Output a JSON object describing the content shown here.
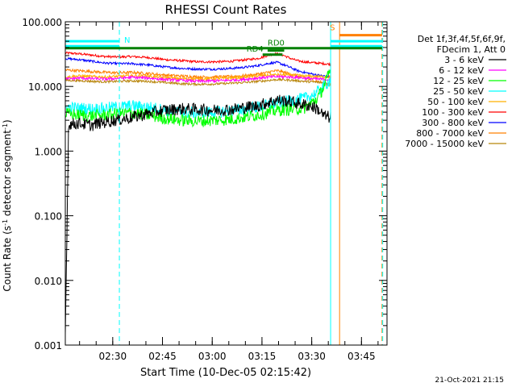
{
  "chart_data": {
    "type": "line",
    "title": "RHESSI Count Rates",
    "xlabel": "Start Time (10-Dec-05 02:15:42)",
    "ylabel_main": "Count Rate (s",
    "ylabel_sup": "-1",
    "ylabel_rest": " detector segment",
    "ylabel_sup2": "-1",
    "ylabel_close": ")",
    "y_scale": "log",
    "ylim": [
      0.001,
      100
    ],
    "y_ticks": [
      {
        "value": 0.001,
        "label": "0.001"
      },
      {
        "value": 0.01,
        "label": "0.010"
      },
      {
        "value": 0.1,
        "label": "0.100"
      },
      {
        "value": 1,
        "label": "1.000"
      },
      {
        "value": 10,
        "label": "10.000"
      },
      {
        "value": 100,
        "label": "100.000"
      }
    ],
    "x_unit": "minutes after 02:15:42",
    "xlim": [
      0,
      97
    ],
    "x_ticks": [
      {
        "value": 14.3,
        "label": "02:30"
      },
      {
        "value": 29.3,
        "label": "02:45"
      },
      {
        "value": 44.3,
        "label": "03:00"
      },
      {
        "value": 59.3,
        "label": "03:15"
      },
      {
        "value": 74.3,
        "label": "03:30"
      },
      {
        "value": 89.3,
        "label": "03:45"
      }
    ],
    "grid": false,
    "legend_header": [
      "Det 1f,3f,4f,5f,6f,9f,",
      "FDecim 1, Att 0"
    ],
    "legend_placement": "right",
    "series": [
      {
        "name": "3 - 6 keV",
        "color": "#000000",
        "x": [
          0,
          1,
          2,
          4,
          6,
          8,
          10,
          12,
          15,
          20,
          25,
          30,
          35,
          40,
          45,
          50,
          55,
          58,
          60,
          62,
          64,
          66,
          68,
          70,
          72,
          74,
          76,
          78,
          80
        ],
        "y": [
          0.0015,
          2.7,
          2.6,
          2.7,
          2.6,
          2.5,
          2.7,
          2.8,
          3.0,
          3.3,
          3.8,
          4.3,
          4.5,
          4.4,
          4.3,
          4.4,
          4.8,
          5.0,
          5.4,
          5.8,
          6.2,
          6.0,
          5.8,
          5.5,
          5.2,
          5.0,
          4.5,
          3.5,
          3.3
        ]
      },
      {
        "name": "6 - 12 keV",
        "color": "#ff00ff",
        "x": [
          0,
          4,
          8,
          12,
          16,
          20,
          25,
          30,
          35,
          40,
          45,
          50,
          55,
          60,
          64,
          68,
          72,
          76,
          80
        ],
        "y": [
          13,
          13.5,
          13.2,
          13.0,
          13.4,
          13.8,
          13.5,
          12.8,
          12.4,
          12.0,
          12.2,
          12.5,
          13.0,
          13.8,
          14.2,
          14.0,
          13.5,
          13.0,
          12.8
        ]
      },
      {
        "name": "12 - 25 keV",
        "color": "#00ff00",
        "x": [
          0,
          4,
          8,
          12,
          16,
          20,
          25,
          30,
          35,
          40,
          45,
          50,
          55,
          60,
          64,
          68,
          72,
          76,
          78,
          80
        ],
        "y": [
          3.8,
          3.6,
          3.5,
          3.6,
          3.8,
          3.9,
          3.6,
          3.2,
          3.0,
          2.9,
          3.0,
          3.1,
          3.4,
          3.8,
          4.3,
          4.4,
          4.6,
          6.5,
          10,
          18
        ]
      },
      {
        "name": "25 - 50 keV",
        "color": "#00ffff",
        "x": [
          0,
          4,
          8,
          12,
          16,
          20,
          25,
          30,
          35,
          40,
          45,
          50,
          55,
          60,
          64,
          68,
          72,
          76,
          78,
          80
        ],
        "y": [
          4.8,
          4.6,
          4.5,
          4.6,
          4.8,
          5.0,
          4.8,
          4.3,
          4.0,
          3.9,
          4.0,
          4.2,
          4.5,
          5.0,
          5.5,
          6.0,
          6.5,
          8.0,
          10,
          13
        ]
      },
      {
        "name": "50 - 100 keV",
        "color": "#ffb000",
        "x": [
          0,
          4,
          8,
          12,
          16,
          20,
          25,
          30,
          35,
          40,
          45,
          50,
          55,
          60,
          64,
          68,
          72,
          76,
          80
        ],
        "y": [
          14,
          14.5,
          14.2,
          14,
          14.3,
          14.6,
          14.4,
          13.6,
          13.2,
          13.0,
          13.2,
          13.5,
          14.0,
          14.8,
          15.2,
          15.0,
          14.5,
          14.2,
          14.0
        ]
      },
      {
        "name": "100 - 300 keV",
        "color": "#ff0000",
        "x": [
          0,
          4,
          8,
          12,
          16,
          20,
          25,
          30,
          35,
          40,
          45,
          50,
          55,
          58,
          60,
          62,
          64,
          66,
          68,
          70,
          72,
          76,
          80
        ],
        "y": [
          33,
          32,
          30.5,
          29,
          28.5,
          29,
          28,
          26,
          25,
          24,
          24,
          24.5,
          26,
          27,
          29,
          31,
          32,
          30,
          27,
          25,
          24,
          23,
          22
        ]
      },
      {
        "name": "300 - 800 keV",
        "color": "#0000ff",
        "x": [
          0,
          4,
          8,
          12,
          16,
          20,
          25,
          30,
          35,
          40,
          45,
          50,
          55,
          58,
          60,
          62,
          64,
          66,
          68,
          70,
          72,
          76,
          80
        ],
        "y": [
          27,
          26,
          24.5,
          23,
          22.5,
          22.5,
          21.5,
          20,
          19,
          18.5,
          18.5,
          19,
          20,
          21,
          22,
          23,
          23.5,
          21.5,
          19.5,
          17.5,
          16.5,
          15,
          14
        ]
      },
      {
        "name": "800 - 7000 keV",
        "color": "#ff8000",
        "x": [
          0,
          4,
          8,
          12,
          16,
          20,
          25,
          30,
          35,
          40,
          45,
          50,
          55,
          60,
          62,
          64,
          66,
          68,
          70,
          72,
          76,
          80
        ],
        "y": [
          18,
          17.5,
          17,
          16.5,
          16.2,
          16.5,
          15.8,
          15,
          14.5,
          14,
          14,
          14.2,
          14.8,
          16,
          17,
          17.5,
          16.5,
          15.5,
          14.5,
          13.5,
          12,
          10.5
        ]
      },
      {
        "name": "7000 - 15000 keV",
        "color": "#b8860b",
        "x": [
          0,
          4,
          8,
          12,
          16,
          20,
          25,
          30,
          35,
          40,
          45,
          50,
          55,
          60,
          64,
          68,
          72,
          76,
          80
        ],
        "y": [
          12.5,
          12.3,
          12.0,
          11.8,
          12.0,
          12.2,
          12.0,
          11.5,
          11.0,
          10.8,
          10.9,
          11.2,
          11.6,
          12.2,
          12.8,
          12.5,
          12.0,
          11.6,
          11.2
        ]
      }
    ],
    "vertical_lines": [
      {
        "x": 0,
        "color": "#00ffff",
        "style": "solid"
      },
      {
        "x": 16.3,
        "color": "#00ffff",
        "style": "dashed"
      },
      {
        "x": 80,
        "color": "#00ffff",
        "style": "solid"
      },
      {
        "x": 82.7,
        "color": "#ff8000",
        "style": "solid"
      },
      {
        "x": 95.5,
        "color": "#ff8000",
        "style": "dashed"
      },
      {
        "x": 95.7,
        "color": "#00ffff",
        "style": "dashed"
      }
    ],
    "bars": [
      {
        "label": "N",
        "color": "#00ffff",
        "x1": 0,
        "x2": 16.3,
        "y": 50
      },
      {
        "label": "",
        "color": "#00ffff",
        "x1": 0,
        "x2": 16.3,
        "y": 42
      },
      {
        "label": "S",
        "color": "#ff8000",
        "x1": 82.7,
        "x2": 95.5,
        "y": 62
      },
      {
        "label": "",
        "color": "#00ffff",
        "x1": 80,
        "x2": 95.5,
        "y": 50
      },
      {
        "label": "",
        "color": "#00ffff",
        "x1": 80,
        "x2": 95.5,
        "y": 42
      },
      {
        "label": "",
        "color": "#008000",
        "x1": 0,
        "x2": 95.5,
        "y": 39
      },
      {
        "label": "RD4",
        "color": "#008000",
        "x1": 59.5,
        "x2": 65.5,
        "y": 31
      },
      {
        "label": "RD0",
        "color": "#008000",
        "x1": 61,
        "x2": 66,
        "y": 36
      }
    ],
    "footer_date": "21-Oct-2021 21:15"
  }
}
